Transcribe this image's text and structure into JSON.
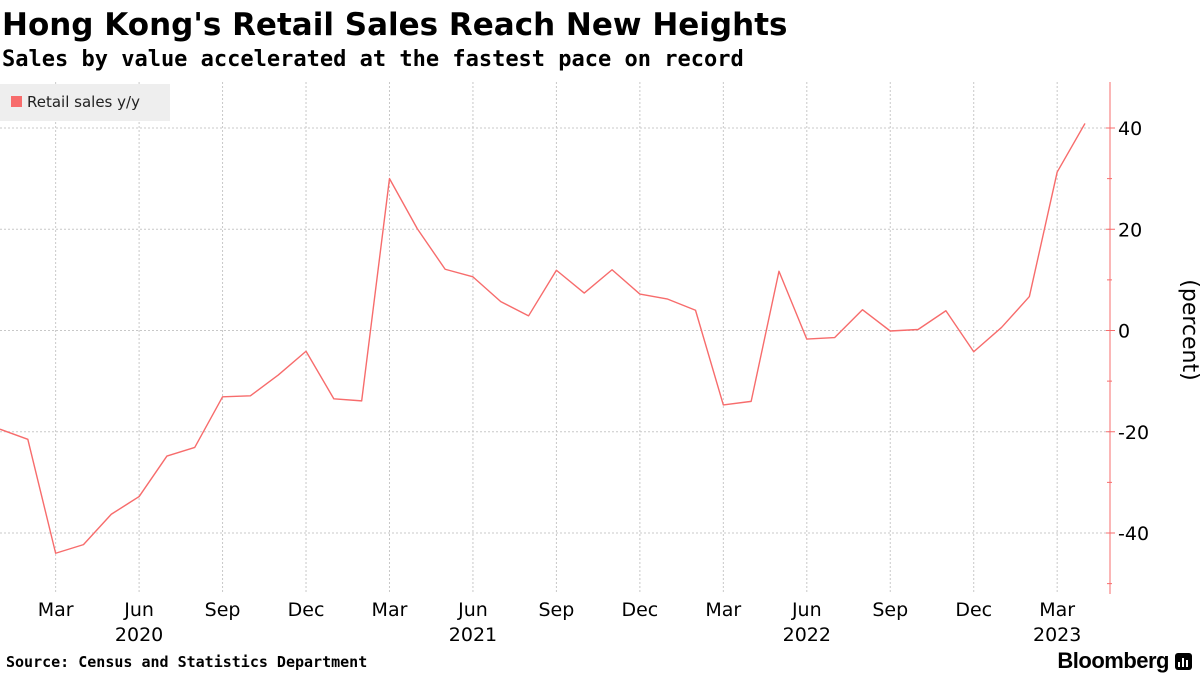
{
  "header": {
    "title": "Hong Kong's Retail Sales Reach New Heights",
    "subtitle": "Sales by value accelerated at the fastest pace on record"
  },
  "footer": {
    "source": "Source: Census and Statistics Department",
    "brand": "Bloomberg"
  },
  "colors": {
    "series": "#f76c6c",
    "grid": "#c8c8c8",
    "legend_bg": "#eeeeee"
  },
  "chart_data": {
    "type": "line",
    "title": "Hong Kong's Retail Sales Reach New Heights",
    "subtitle": "Sales by value accelerated at the fastest pace on record",
    "ylabel": "(percent)",
    "ylim": [
      -50,
      49
    ],
    "yticks": [
      40,
      20,
      0,
      -20,
      -40
    ],
    "legend": {
      "position": "top-left",
      "entries": [
        "Retail sales y/y"
      ]
    },
    "x_month_ticks": [
      {
        "label": "Mar",
        "index": 2
      },
      {
        "label": "Jun",
        "index": 5
      },
      {
        "label": "Sep",
        "index": 8
      },
      {
        "label": "Dec",
        "index": 11
      },
      {
        "label": "Mar",
        "index": 14
      },
      {
        "label": "Jun",
        "index": 17
      },
      {
        "label": "Sep",
        "index": 20
      },
      {
        "label": "Dec",
        "index": 23
      },
      {
        "label": "Mar",
        "index": 26
      },
      {
        "label": "Jun",
        "index": 29
      },
      {
        "label": "Sep",
        "index": 32
      },
      {
        "label": "Dec",
        "index": 35
      },
      {
        "label": "Mar",
        "index": 38
      }
    ],
    "x_year_ticks": [
      {
        "label": "2020",
        "index": 5
      },
      {
        "label": "2021",
        "index": 17
      },
      {
        "label": "2022",
        "index": 29
      },
      {
        "label": "2023",
        "index": 38
      }
    ],
    "series": [
      {
        "name": "Retail sales y/y",
        "start": "2020-01",
        "values": [
          -19.5,
          -21.5,
          -44.0,
          -42.3,
          -36.3,
          -32.8,
          -24.8,
          -23.1,
          -13.1,
          -12.9,
          -8.8,
          -4.1,
          -13.5,
          -13.9,
          30.0,
          20.1,
          12.1,
          10.6,
          5.7,
          2.9,
          11.9,
          7.4,
          12.0,
          7.2,
          6.2,
          4.0,
          -14.7,
          -14.0,
          11.7,
          -1.7,
          -1.4,
          4.1,
          -0.1,
          0.2,
          3.9,
          -4.2,
          0.6,
          6.7,
          31.3,
          40.9
        ]
      }
    ]
  }
}
